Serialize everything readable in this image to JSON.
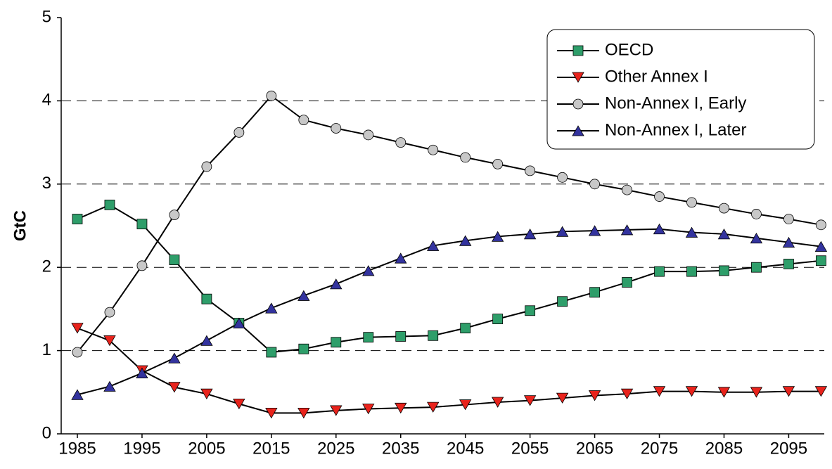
{
  "chart_data": {
    "type": "line",
    "y_label": "GtC",
    "x": [
      1985,
      1990,
      1995,
      2000,
      2005,
      2010,
      2015,
      2020,
      2025,
      2030,
      2035,
      2040,
      2045,
      2050,
      2055,
      2060,
      2065,
      2070,
      2075,
      2080,
      2085,
      2090,
      2095,
      2100
    ],
    "xlim": [
      1982.5,
      2100.5
    ],
    "xticks": [
      1985,
      1995,
      2005,
      2015,
      2025,
      2035,
      2045,
      2055,
      2065,
      2075,
      2085,
      2095
    ],
    "ylim": [
      0,
      5
    ],
    "yticks": [
      0,
      1,
      2,
      3,
      4,
      5
    ],
    "grid": true,
    "legend": "top-right",
    "series": [
      {
        "name": "OECD",
        "color": "#2e9e6a",
        "marker": "square",
        "values": [
          2.58,
          2.75,
          2.52,
          2.09,
          1.62,
          1.33,
          0.98,
          1.02,
          1.1,
          1.16,
          1.17,
          1.18,
          1.27,
          1.38,
          1.48,
          1.59,
          1.7,
          1.82,
          1.95,
          1.95,
          1.96,
          2.0,
          2.04,
          2.08
        ]
      },
      {
        "name": "Other Annex I",
        "color": "#e8231c",
        "marker": "triangle-down",
        "values": [
          1.27,
          1.12,
          0.76,
          0.56,
          0.48,
          0.36,
          0.25,
          0.25,
          0.28,
          0.3,
          0.31,
          0.32,
          0.35,
          0.38,
          0.4,
          0.43,
          0.46,
          0.48,
          0.51,
          0.51,
          0.5,
          0.5,
          0.51,
          0.51
        ]
      },
      {
        "name": "Non-Annex I, Early",
        "color": "#c8c8c8",
        "marker": "circle",
        "values": [
          0.98,
          1.46,
          2.02,
          2.63,
          3.21,
          3.62,
          4.06,
          3.77,
          3.67,
          3.59,
          3.5,
          3.41,
          3.32,
          3.24,
          3.16,
          3.08,
          3.0,
          2.93,
          2.85,
          2.78,
          2.71,
          2.64,
          2.58,
          2.51
        ]
      },
      {
        "name": "Non-Annex I, Later",
        "color": "#33339e",
        "marker": "triangle-up",
        "values": [
          0.47,
          0.57,
          0.73,
          0.91,
          1.12,
          1.33,
          1.51,
          1.66,
          1.8,
          1.96,
          2.11,
          2.26,
          2.32,
          2.37,
          2.4,
          2.43,
          2.44,
          2.45,
          2.46,
          2.42,
          2.4,
          2.35,
          2.3,
          2.25
        ]
      }
    ]
  }
}
